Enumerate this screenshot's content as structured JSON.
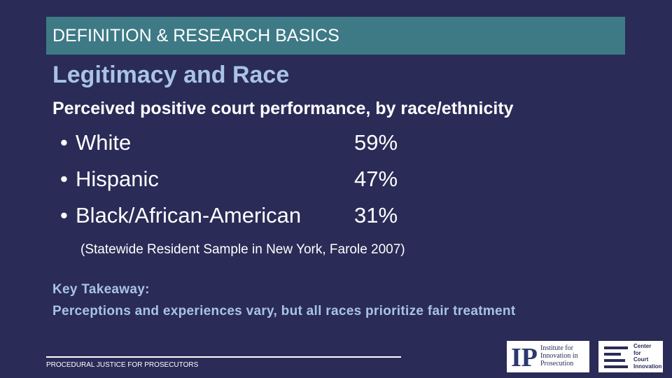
{
  "header": {
    "title": "DEFINITION & RESEARCH BASICS"
  },
  "title": "Legitimacy and Race",
  "subtitle": "Perceived positive court performance, by race/ethnicity",
  "items": [
    {
      "label": "White",
      "value": "59%"
    },
    {
      "label": "Hispanic",
      "value": "47%"
    },
    {
      "label": "Black/African-American",
      "value": "31%"
    }
  ],
  "note": "(Statewide Resident Sample in New York, Farole 2007)",
  "takeaway": {
    "heading": "Key Takeaway:",
    "text": "Perceptions and experiences vary, but all races prioritize fair treatment"
  },
  "footer": "PROCEDURAL JUSTICE FOR PROSECUTORS",
  "logos": [
    {
      "mark": "IP",
      "lines": [
        "Institute for",
        "Innovation in",
        "Prosecution"
      ]
    },
    {
      "lines": [
        "Center",
        "for",
        "Court",
        "Innovation"
      ]
    }
  ]
}
